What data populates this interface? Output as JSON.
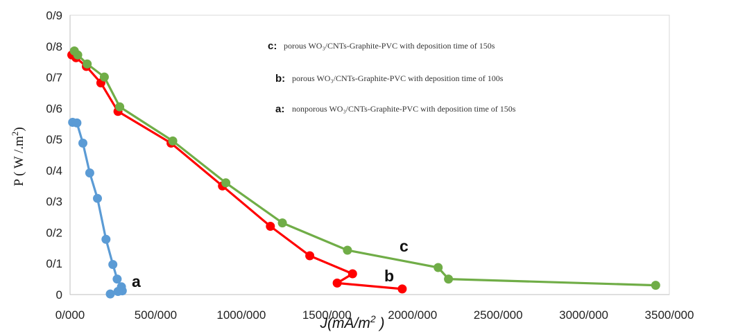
{
  "chart_data": {
    "type": "line",
    "xlabel": "J(mA/m²)",
    "ylabel": "P ( W /.m²)",
    "xlim": [
      0,
      3500
    ],
    "ylim": [
      0,
      0.9
    ],
    "x_ticks": [
      "0/000",
      "500/000",
      "1000/000",
      "1500/000",
      "2000/000",
      "2500/000",
      "3000/000",
      "3500/000"
    ],
    "y_ticks": [
      "0",
      "0/1",
      "0/2",
      "0/3",
      "0/4",
      "0/5",
      "0/6",
      "0/7",
      "0/8",
      "0/9"
    ],
    "grid": false,
    "legend_position": "top-right",
    "legend": [
      {
        "key": "c:",
        "text": "porous WO₃/CNTs-Graphite-PVC with deposition time of 150s"
      },
      {
        "key": "b:",
        "text": "porous WO₃/CNTs-Graphite-PVC with deposition time of 100s"
      },
      {
        "key": "a:",
        "text": "nonporous WO₃/CNTs-Graphite-PVC with deposition time of 150s"
      }
    ],
    "series": [
      {
        "label": "a",
        "color": "#5b9bd5",
        "points": [
          [
            15,
            0.555
          ],
          [
            40,
            0.553
          ],
          [
            75,
            0.488
          ],
          [
            115,
            0.392
          ],
          [
            160,
            0.31
          ],
          [
            210,
            0.178
          ],
          [
            250,
            0.097
          ],
          [
            275,
            0.05
          ],
          [
            300,
            0.025
          ],
          [
            305,
            0.012
          ],
          [
            280,
            0.01
          ],
          [
            235,
            0.002
          ]
        ]
      },
      {
        "label": "b",
        "color": "#ff0000",
        "points": [
          [
            10,
            0.772
          ],
          [
            35,
            0.763
          ],
          [
            95,
            0.735
          ],
          [
            180,
            0.682
          ],
          [
            280,
            0.59
          ],
          [
            590,
            0.488
          ],
          [
            890,
            0.35
          ],
          [
            1170,
            0.22
          ],
          [
            1400,
            0.125
          ],
          [
            1650,
            0.067
          ],
          [
            1560,
            0.037
          ],
          [
            1940,
            0.018
          ]
        ]
      },
      {
        "label": "c",
        "color": "#70ad47",
        "points": [
          [
            25,
            0.785
          ],
          [
            45,
            0.772
          ],
          [
            100,
            0.743
          ],
          [
            200,
            0.701
          ],
          [
            290,
            0.605
          ],
          [
            600,
            0.495
          ],
          [
            910,
            0.36
          ],
          [
            1240,
            0.231
          ],
          [
            1620,
            0.143
          ],
          [
            2150,
            0.087
          ],
          [
            2210,
            0.05
          ],
          [
            3420,
            0.03
          ]
        ]
      }
    ]
  }
}
